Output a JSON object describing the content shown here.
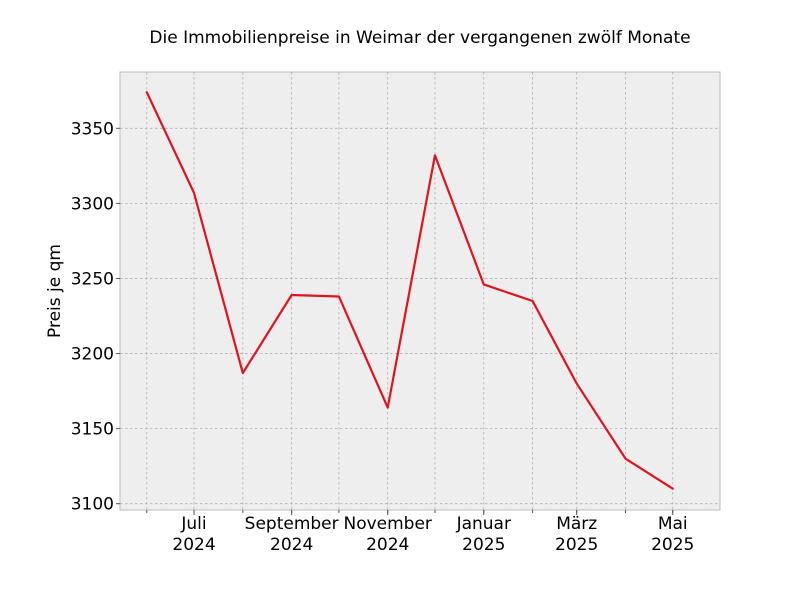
{
  "chart_data": {
    "type": "line",
    "title": "Die Immobilienpreise in Weimar der vergangenen zwölf Monate",
    "xlabel": "",
    "ylabel": "Preis je qm",
    "x": [
      "2024-06",
      "2024-07",
      "2024-08",
      "2024-09",
      "2024-10",
      "2024-11",
      "2024-12",
      "2025-01",
      "2025-02",
      "2025-03",
      "2025-04",
      "2025-05"
    ],
    "series": [
      {
        "values": [
          3374,
          3307,
          3187,
          3239,
          3238,
          3164,
          3332,
          3246,
          3235,
          3180,
          3130,
          3110
        ],
        "color": "#e0141e"
      }
    ],
    "x_ticks": [
      {
        "x": "2024-07",
        "line1": "Juli",
        "line2": "2024"
      },
      {
        "x": "2024-09",
        "line1": "September",
        "line2": "2024"
      },
      {
        "x": "2024-11",
        "line1": "November",
        "line2": "2024"
      },
      {
        "x": "2025-01",
        "line1": "Januar",
        "line2": "2025"
      },
      {
        "x": "2025-03",
        "line1": "März",
        "line2": "2025"
      },
      {
        "x": "2025-05",
        "line1": "Mai",
        "line2": "2025"
      }
    ],
    "y_ticks": [
      3100,
      3150,
      3200,
      3250,
      3300,
      3350
    ],
    "ylim": [
      3095.8,
      3387.5
    ],
    "xlim": [
      "2024-05-15",
      "2025-05-31"
    ],
    "grid": true,
    "background": "#eeeeee",
    "style": "bmh"
  }
}
